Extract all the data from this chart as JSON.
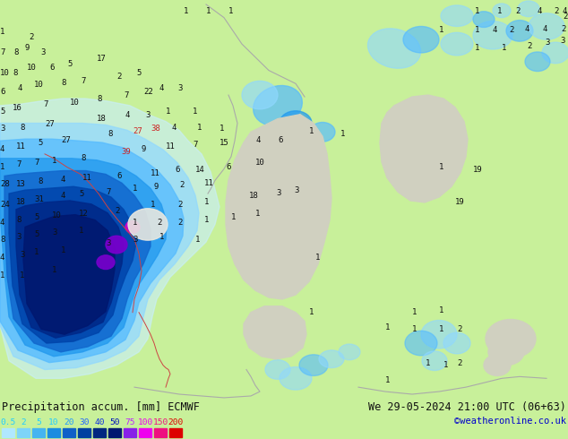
{
  "title_left": "Precipitation accum. [mm] ECMWF",
  "title_right": "We 29-05-2024 21:00 UTC (06+63)",
  "credit": "©weatheronline.co.uk",
  "colorbar_values": [
    "0.5",
    "2",
    "5",
    "10",
    "20",
    "30",
    "40",
    "50",
    "75",
    "100",
    "150",
    "200"
  ],
  "colorbar_colors": [
    "#b0e8ff",
    "#7dd4f8",
    "#45b4f0",
    "#1a8ce0",
    "#1060c8",
    "#0040a0",
    "#002880",
    "#001870",
    "#8820e8",
    "#ee00ee",
    "#ee1080",
    "#dd0000"
  ],
  "colorbar_label_colors": [
    "#22ccff",
    "#22ccff",
    "#22ccff",
    "#22ccff",
    "#2299ff",
    "#2266ff",
    "#1133dd",
    "#0011bb",
    "#bb22ff",
    "#ee00ee",
    "#ee1080",
    "#dd0000"
  ],
  "bg_color": "#c8f09a",
  "land_gray": "#d0d0c0",
  "border_color": "#aaaaaa",
  "red_border_color": "#cc4444",
  "title_color": "#111111",
  "credit_color": "#0000cc",
  "num_color": "#111111",
  "num_red": "#cc2222",
  "figw": 6.34,
  "figh": 4.9
}
